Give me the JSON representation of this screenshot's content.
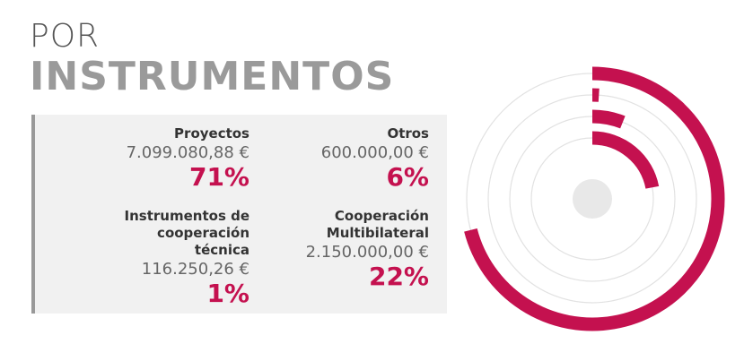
{
  "chart_data": {
    "type": "radial_bar",
    "title": "POR",
    "subtitle": "INSTRUMENTOS",
    "categories": [
      "Proyectos",
      "Otros",
      "Instrumentos de cooperación técnica",
      "Cooperación Multibilateral"
    ],
    "amount_labels": [
      "7.099.080,88 €",
      "600.000,00 €",
      "116.250,26 €",
      "2.150.000,00 €"
    ],
    "values": [
      71,
      6,
      1,
      22
    ],
    "value_labels": [
      "71%",
      "6%",
      "1%",
      "22%"
    ],
    "color": "#c4114f"
  }
}
